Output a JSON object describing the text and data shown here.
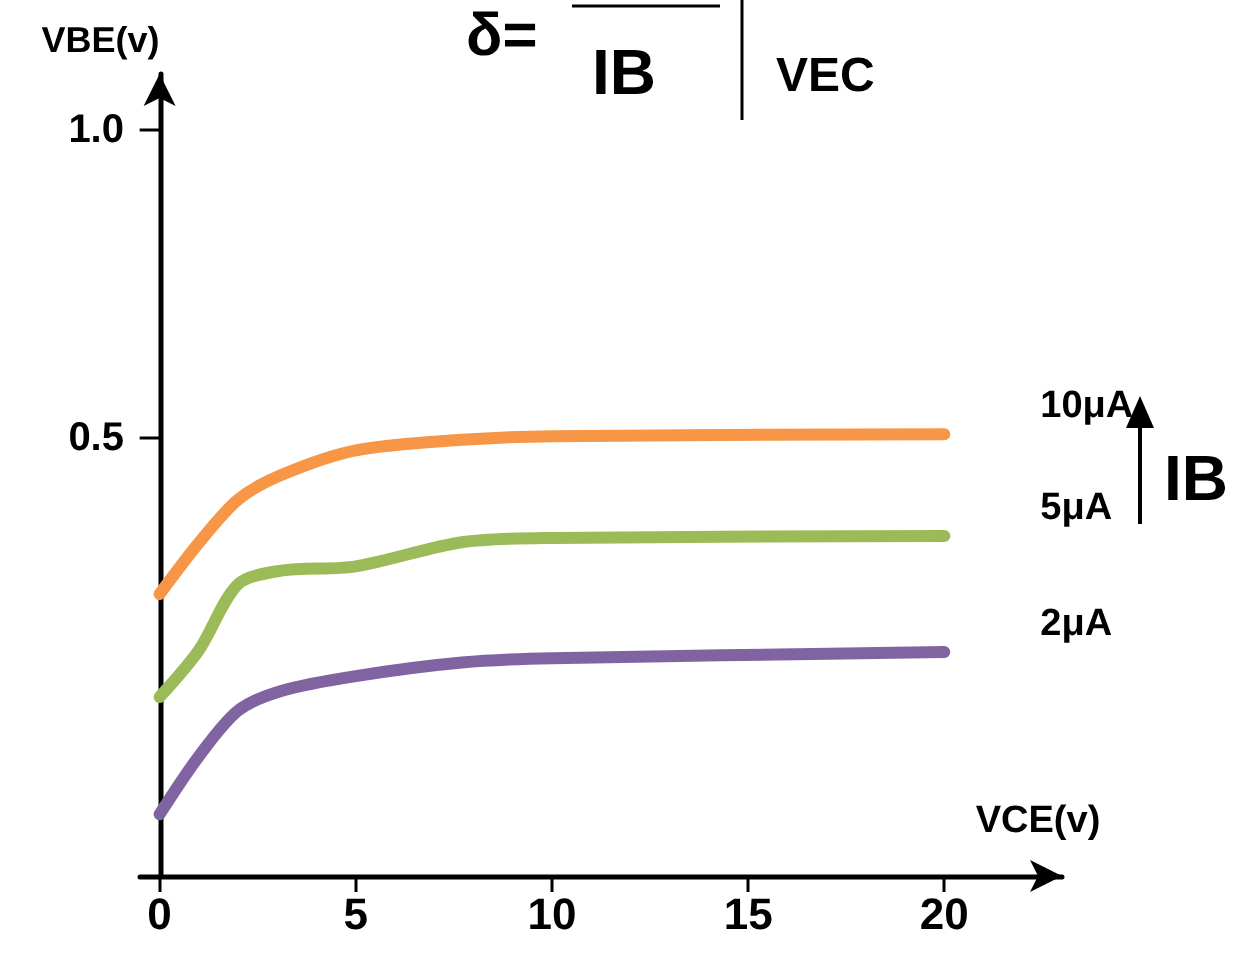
{
  "chart_data": {
    "type": "line",
    "title": "δ=",
    "xlabel": "VCE(v)",
    "ylabel": "VBE(v)",
    "annotations": [
      "IB",
      "VEC",
      "IB"
    ],
    "x": [
      0,
      1,
      2,
      3.1,
      5,
      7.7,
      10,
      20
    ],
    "series": [
      {
        "name": "10μA",
        "color": "#f79646",
        "values": [
          0.247,
          0.33,
          0.4,
          0.44,
          0.48,
          0.497,
          0.503,
          0.506
        ]
      },
      {
        "name": "5μA",
        "color": "#9bbb59",
        "values": [
          0.08,
          0.156,
          0.263,
          0.285,
          0.292,
          0.331,
          0.338,
          0.341
        ]
      },
      {
        "name": "2μA",
        "color": "#8064a2",
        "values": [
          -0.11,
          -0.016,
          0.058,
          0.09,
          0.114,
          0.136,
          0.143,
          0.153
        ]
      }
    ],
    "xlim": [
      -0.5,
      23
    ],
    "xticks": [
      0,
      5,
      10,
      15,
      20
    ],
    "ylim": [
      -0.21,
      1.09
    ],
    "yticks": [
      {
        "value": 0.5,
        "label": "0.5"
      },
      {
        "value": 1,
        "label": "1.0"
      }
    ],
    "grid": false,
    "legend": false,
    "marker": "none",
    "line_style": "solid"
  }
}
